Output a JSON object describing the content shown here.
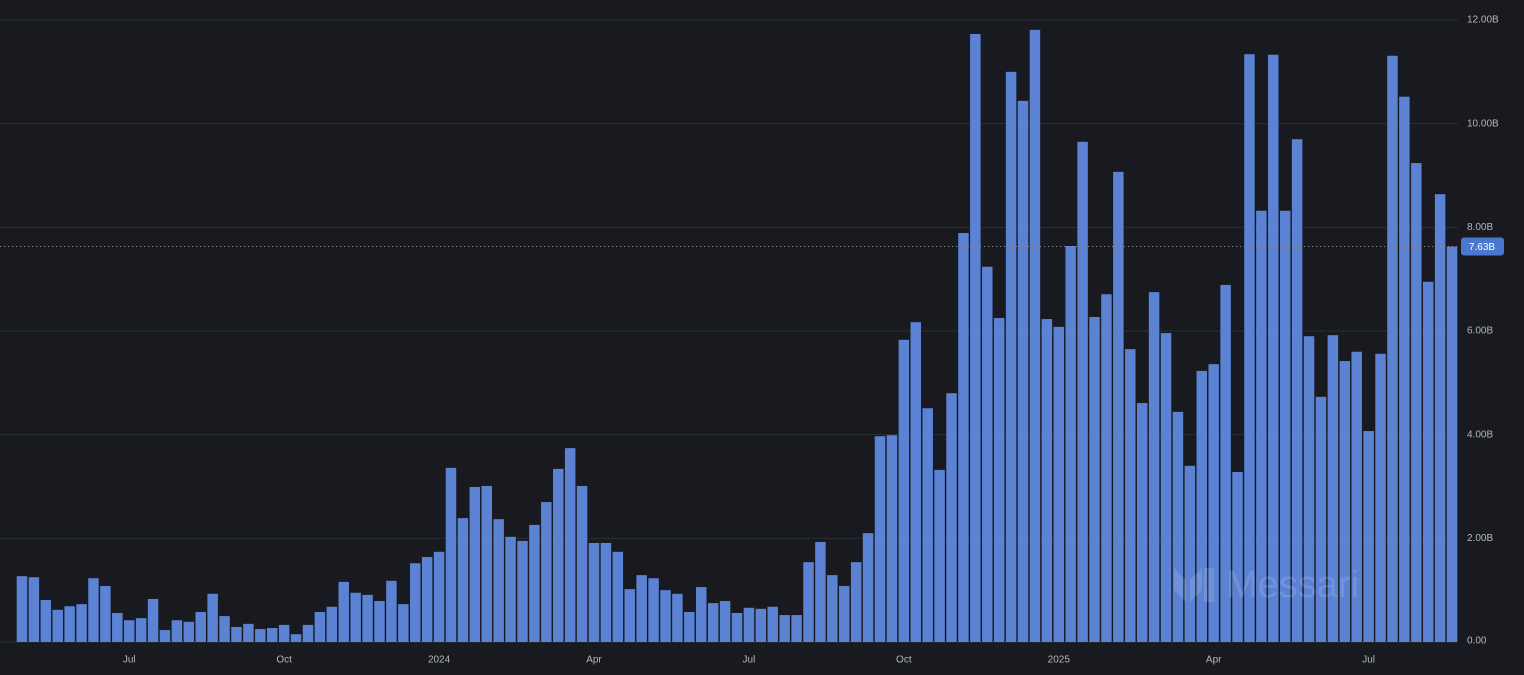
{
  "chart_data": {
    "type": "bar",
    "categories": [
      null,
      null,
      null,
      null,
      null,
      null,
      null,
      null,
      null,
      "Jul",
      null,
      null,
      null,
      null,
      null,
      null,
      null,
      null,
      null,
      null,
      null,
      null,
      "Oct",
      null,
      null,
      null,
      null,
      null,
      null,
      null,
      null,
      null,
      null,
      null,
      null,
      "2024",
      null,
      null,
      null,
      null,
      null,
      null,
      null,
      null,
      null,
      null,
      null,
      null,
      "Apr",
      null,
      null,
      null,
      null,
      null,
      null,
      null,
      null,
      null,
      null,
      null,
      null,
      "Jul",
      null,
      null,
      null,
      null,
      null,
      null,
      null,
      null,
      null,
      null,
      null,
      null,
      "Oct",
      null,
      null,
      null,
      null,
      null,
      null,
      null,
      null,
      null,
      null,
      null,
      null,
      "2025",
      null,
      null,
      null,
      null,
      null,
      null,
      null,
      null,
      null,
      null,
      null,
      null,
      "Apr",
      null,
      null,
      null,
      null,
      null,
      null,
      null,
      null,
      null,
      null,
      null,
      null,
      "Jul",
      null,
      null,
      null,
      null,
      null,
      null,
      null
    ],
    "values": [
      1.27,
      1.25,
      0.81,
      0.62,
      0.69,
      0.73,
      1.23,
      1.08,
      0.56,
      0.42,
      0.46,
      0.83,
      0.23,
      0.42,
      0.39,
      0.58,
      0.93,
      0.5,
      0.29,
      0.35,
      0.25,
      0.27,
      0.33,
      0.15,
      0.33,
      0.58,
      0.68,
      1.16,
      0.95,
      0.91,
      0.79,
      1.18,
      0.73,
      1.52,
      1.64,
      1.74,
      3.36,
      2.39,
      2.99,
      3.01,
      2.37,
      2.03,
      1.95,
      2.26,
      2.7,
      3.34,
      3.74,
      3.01,
      1.91,
      1.91,
      1.74,
      1.02,
      1.29,
      1.23,
      1.0,
      0.93,
      0.58,
      1.06,
      0.75,
      0.79,
      0.56,
      0.66,
      0.64,
      0.68,
      0.52,
      0.52,
      1.54,
      1.93,
      1.29,
      1.08,
      1.54,
      2.1,
      3.97,
      3.99,
      5.83,
      6.17,
      4.51,
      3.32,
      4.8,
      7.89,
      11.73,
      7.24,
      6.25,
      11.0,
      10.44,
      11.81,
      6.23,
      6.08,
      7.64,
      9.65,
      6.27,
      6.71,
      9.07,
      5.65,
      4.61,
      6.75,
      5.96,
      4.44,
      3.4,
      5.23,
      5.36,
      6.89,
      3.28,
      11.34,
      8.32,
      11.33,
      8.32,
      9.7,
      5.9,
      4.73,
      5.92,
      5.42,
      5.6,
      4.07,
      5.56,
      11.31,
      10.52,
      9.24,
      6.95,
      8.64,
      7.63
    ],
    "color": "#5b82d3",
    "ylim": [
      0,
      12
    ],
    "yticks": [
      {
        "value": 0,
        "label": "0.00"
      },
      {
        "value": 2,
        "label": "2.00B"
      },
      {
        "value": 4,
        "label": "4.00B"
      },
      {
        "value": 6,
        "label": "6.00B"
      },
      {
        "value": 8,
        "label": "8.00B"
      },
      {
        "value": 10,
        "label": "10.00B"
      },
      {
        "value": 12,
        "label": "12.00B"
      }
    ],
    "grid": true,
    "current_value": {
      "value": 7.63,
      "label": "7.63B"
    },
    "watermark": "Messari"
  }
}
